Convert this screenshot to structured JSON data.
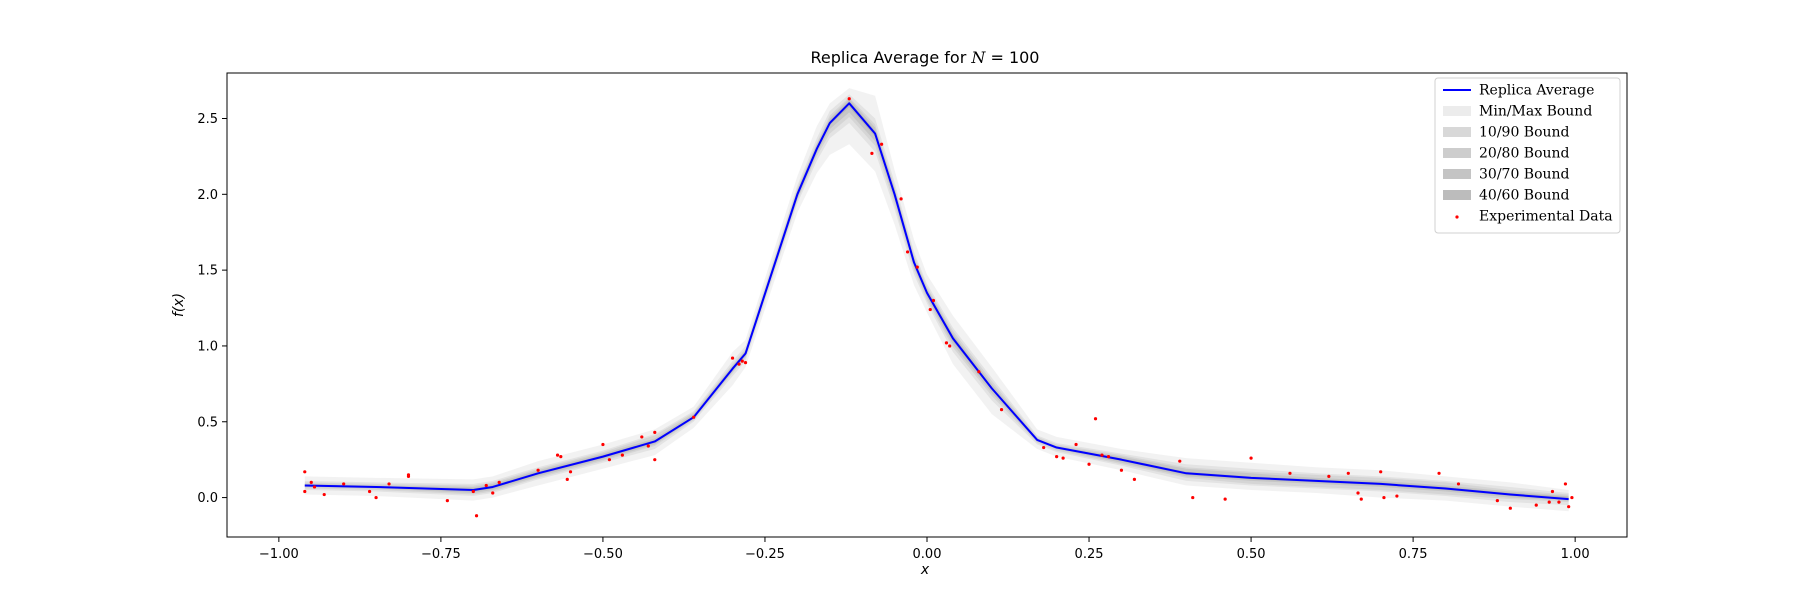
{
  "chart_data": {
    "type": "line",
    "title": "Replica Average for N = 100",
    "title_parts": {
      "prefix": "Replica Average for ",
      "var": "N",
      "suffix": " = 100"
    },
    "xlabel": "x",
    "ylabel": "f(x)",
    "xlim": [
      -1.08,
      1.08
    ],
    "ylim": [
      -0.26,
      2.8
    ],
    "xticks": [
      -1.0,
      -0.75,
      -0.5,
      -0.25,
      0.0,
      0.25,
      0.5,
      0.75,
      1.0
    ],
    "xtick_labels": [
      "−1.00",
      "−0.75",
      "−0.50",
      "−0.25",
      "0.00",
      "0.25",
      "0.50",
      "0.75",
      "1.00"
    ],
    "yticks": [
      0.0,
      0.5,
      1.0,
      1.5,
      2.0,
      2.5
    ],
    "ytick_labels": [
      "0.0",
      "0.5",
      "1.0",
      "1.5",
      "2.0",
      "2.5"
    ],
    "grid": false,
    "legend_position": "top-right",
    "legend": [
      {
        "label": "Replica Average",
        "kind": "line",
        "color": "#0000ff"
      },
      {
        "label": "Min/Max Bound",
        "kind": "band",
        "color": "#ececec"
      },
      {
        "label": "10/90 Bound",
        "kind": "band",
        "color": "#d8d8d8"
      },
      {
        "label": "20/80 Bound",
        "kind": "band",
        "color": "#cdcdcd"
      },
      {
        "label": "30/70 Bound",
        "kind": "band",
        "color": "#c4c4c4"
      },
      {
        "label": "40/60 Bound",
        "kind": "band",
        "color": "#bcbcbc"
      },
      {
        "label": "Experimental Data",
        "kind": "point",
        "color": "#ff0000"
      }
    ],
    "series": [
      {
        "name": "Replica Average",
        "color": "#0000ff",
        "x": [
          -0.96,
          -0.85,
          -0.7,
          -0.67,
          -0.6,
          -0.5,
          -0.42,
          -0.36,
          -0.3,
          -0.28,
          -0.2,
          -0.17,
          -0.15,
          -0.12,
          -0.08,
          -0.05,
          -0.02,
          0.0,
          0.04,
          0.1,
          0.17,
          0.2,
          0.3,
          0.4,
          0.5,
          0.6,
          0.7,
          0.8,
          0.9,
          0.99
        ],
        "y": [
          0.08,
          0.07,
          0.05,
          0.07,
          0.16,
          0.27,
          0.37,
          0.53,
          0.85,
          0.95,
          2.0,
          2.3,
          2.47,
          2.6,
          2.4,
          2.0,
          1.55,
          1.35,
          1.05,
          0.72,
          0.38,
          0.33,
          0.25,
          0.16,
          0.13,
          0.11,
          0.09,
          0.06,
          0.02,
          -0.01
        ]
      }
    ],
    "bands": [
      {
        "name": "Min/Max Bound",
        "color": "#000000",
        "opacity": 0.05,
        "x": [
          -0.96,
          -0.85,
          -0.7,
          -0.67,
          -0.6,
          -0.5,
          -0.42,
          -0.36,
          -0.3,
          -0.28,
          -0.2,
          -0.17,
          -0.15,
          -0.12,
          -0.08,
          -0.05,
          -0.02,
          0.0,
          0.04,
          0.1,
          0.17,
          0.2,
          0.3,
          0.4,
          0.5,
          0.6,
          0.7,
          0.8,
          0.9,
          0.99
        ],
        "lower": [
          0.02,
          0.01,
          -0.02,
          0.0,
          0.08,
          0.19,
          0.28,
          0.46,
          0.74,
          0.86,
          1.88,
          2.14,
          2.26,
          2.33,
          2.15,
          1.8,
          1.4,
          1.22,
          0.88,
          0.55,
          0.32,
          0.27,
          0.18,
          0.08,
          0.05,
          0.03,
          0.0,
          -0.02,
          -0.06,
          -0.09
        ],
        "upper": [
          0.14,
          0.13,
          0.12,
          0.14,
          0.24,
          0.35,
          0.45,
          0.6,
          0.96,
          1.04,
          2.12,
          2.45,
          2.6,
          2.7,
          2.65,
          2.16,
          1.7,
          1.47,
          1.2,
          0.86,
          0.45,
          0.4,
          0.32,
          0.26,
          0.23,
          0.2,
          0.18,
          0.14,
          0.1,
          0.05
        ]
      },
      {
        "name": "10/90 Bound",
        "color": "#000000",
        "opacity": 0.06,
        "x": [
          -0.96,
          -0.85,
          -0.7,
          -0.67,
          -0.6,
          -0.5,
          -0.42,
          -0.36,
          -0.3,
          -0.28,
          -0.2,
          -0.17,
          -0.15,
          -0.12,
          -0.08,
          -0.05,
          -0.02,
          0.0,
          0.04,
          0.1,
          0.17,
          0.2,
          0.3,
          0.4,
          0.5,
          0.6,
          0.7,
          0.8,
          0.9,
          0.99
        ],
        "lower": [
          0.05,
          0.04,
          0.01,
          0.03,
          0.12,
          0.23,
          0.32,
          0.5,
          0.8,
          0.9,
          1.94,
          2.22,
          2.37,
          2.47,
          2.28,
          1.9,
          1.47,
          1.28,
          0.96,
          0.64,
          0.35,
          0.3,
          0.21,
          0.11,
          0.08,
          0.06,
          0.04,
          0.01,
          -0.03,
          -0.05
        ],
        "upper": [
          0.11,
          0.1,
          0.09,
          0.11,
          0.2,
          0.31,
          0.42,
          0.57,
          0.9,
          1.0,
          2.06,
          2.37,
          2.55,
          2.66,
          2.5,
          2.08,
          1.62,
          1.41,
          1.12,
          0.79,
          0.41,
          0.36,
          0.29,
          0.22,
          0.19,
          0.16,
          0.14,
          0.11,
          0.07,
          0.03
        ]
      },
      {
        "name": "20/80 Bound",
        "color": "#000000",
        "opacity": 0.06,
        "x": [
          -0.96,
          -0.85,
          -0.7,
          -0.67,
          -0.6,
          -0.5,
          -0.42,
          -0.36,
          -0.3,
          -0.28,
          -0.2,
          -0.17,
          -0.15,
          -0.12,
          -0.08,
          -0.05,
          -0.02,
          0.0,
          0.04,
          0.1,
          0.17,
          0.2,
          0.3,
          0.4,
          0.5,
          0.6,
          0.7,
          0.8,
          0.9,
          0.99
        ],
        "lower": [
          0.06,
          0.05,
          0.02,
          0.04,
          0.13,
          0.24,
          0.34,
          0.51,
          0.82,
          0.92,
          1.96,
          2.25,
          2.4,
          2.51,
          2.32,
          1.93,
          1.5,
          1.3,
          0.99,
          0.67,
          0.36,
          0.31,
          0.22,
          0.13,
          0.09,
          0.07,
          0.05,
          0.02,
          -0.01,
          -0.03
        ],
        "upper": [
          0.1,
          0.09,
          0.08,
          0.1,
          0.19,
          0.3,
          0.41,
          0.56,
          0.88,
          0.98,
          2.04,
          2.34,
          2.52,
          2.64,
          2.46,
          2.05,
          1.6,
          1.39,
          1.1,
          0.77,
          0.4,
          0.35,
          0.28,
          0.2,
          0.17,
          0.15,
          0.13,
          0.1,
          0.05,
          0.02
        ]
      },
      {
        "name": "30/70 Bound",
        "color": "#000000",
        "opacity": 0.07,
        "x": [
          -0.96,
          -0.85,
          -0.7,
          -0.67,
          -0.6,
          -0.5,
          -0.42,
          -0.36,
          -0.3,
          -0.28,
          -0.2,
          -0.17,
          -0.15,
          -0.12,
          -0.08,
          -0.05,
          -0.02,
          0.0,
          0.04,
          0.1,
          0.17,
          0.2,
          0.3,
          0.4,
          0.5,
          0.6,
          0.7,
          0.8,
          0.9,
          0.99
        ],
        "lower": [
          0.07,
          0.06,
          0.03,
          0.05,
          0.14,
          0.25,
          0.35,
          0.52,
          0.83,
          0.93,
          1.97,
          2.27,
          2.43,
          2.54,
          2.35,
          1.96,
          1.52,
          1.32,
          1.01,
          0.69,
          0.37,
          0.32,
          0.23,
          0.14,
          0.11,
          0.09,
          0.07,
          0.04,
          0.0,
          -0.02
        ],
        "upper": [
          0.09,
          0.08,
          0.07,
          0.09,
          0.18,
          0.29,
          0.39,
          0.55,
          0.87,
          0.97,
          2.03,
          2.33,
          2.5,
          2.63,
          2.44,
          2.04,
          1.58,
          1.38,
          1.08,
          0.75,
          0.39,
          0.34,
          0.27,
          0.19,
          0.16,
          0.13,
          0.11,
          0.08,
          0.04,
          0.01
        ]
      },
      {
        "name": "40/60 Bound",
        "color": "#000000",
        "opacity": 0.08,
        "x": [
          -0.96,
          -0.85,
          -0.7,
          -0.67,
          -0.6,
          -0.5,
          -0.42,
          -0.36,
          -0.3,
          -0.28,
          -0.2,
          -0.17,
          -0.15,
          -0.12,
          -0.08,
          -0.05,
          -0.02,
          0.0,
          0.04,
          0.1,
          0.17,
          0.2,
          0.3,
          0.4,
          0.5,
          0.6,
          0.7,
          0.8,
          0.9,
          0.99
        ],
        "lower": [
          0.075,
          0.065,
          0.04,
          0.06,
          0.15,
          0.26,
          0.36,
          0.525,
          0.84,
          0.94,
          1.985,
          2.285,
          2.455,
          2.575,
          2.38,
          1.98,
          1.535,
          1.335,
          1.03,
          0.71,
          0.375,
          0.325,
          0.24,
          0.15,
          0.12,
          0.1,
          0.08,
          0.05,
          0.01,
          -0.015
        ],
        "upper": [
          0.085,
          0.075,
          0.06,
          0.08,
          0.17,
          0.28,
          0.38,
          0.535,
          0.86,
          0.96,
          2.015,
          2.315,
          2.485,
          2.615,
          2.42,
          2.02,
          1.565,
          1.365,
          1.07,
          0.73,
          0.385,
          0.335,
          0.26,
          0.17,
          0.14,
          0.12,
          0.1,
          0.07,
          0.03,
          0.005
        ]
      }
    ],
    "scatter": {
      "name": "Experimental Data",
      "color": "#ff0000",
      "x": [
        -0.96,
        -0.96,
        -0.95,
        -0.945,
        -0.93,
        -0.9,
        -0.86,
        -0.85,
        -0.83,
        -0.8,
        -0.8,
        -0.74,
        -0.7,
        -0.695,
        -0.68,
        -0.67,
        -0.66,
        -0.6,
        -0.57,
        -0.565,
        -0.555,
        -0.55,
        -0.5,
        -0.49,
        -0.47,
        -0.44,
        -0.43,
        -0.42,
        -0.42,
        -0.36,
        -0.3,
        -0.29,
        -0.285,
        -0.28,
        -0.12,
        -0.085,
        -0.07,
        -0.04,
        -0.03,
        -0.015,
        0.005,
        0.01,
        0.03,
        0.035,
        0.08,
        0.115,
        0.18,
        0.2,
        0.21,
        0.23,
        0.25,
        0.26,
        0.27,
        0.28,
        0.3,
        0.32,
        0.39,
        0.41,
        0.46,
        0.5,
        0.56,
        0.62,
        0.65,
        0.665,
        0.67,
        0.7,
        0.705,
        0.725,
        0.79,
        0.82,
        0.88,
        0.9,
        0.94,
        0.96,
        0.965,
        0.975,
        0.985,
        0.99,
        0.995
      ],
      "y": [
        0.17,
        0.04,
        0.1,
        0.07,
        0.02,
        0.09,
        0.04,
        0.0,
        0.09,
        0.15,
        0.14,
        -0.02,
        0.04,
        -0.12,
        0.08,
        0.03,
        0.1,
        0.18,
        0.28,
        0.27,
        0.12,
        0.17,
        0.35,
        0.25,
        0.28,
        0.4,
        0.34,
        0.25,
        0.43,
        0.53,
        0.92,
        0.88,
        0.9,
        0.89,
        2.63,
        2.27,
        2.33,
        1.97,
        1.62,
        1.52,
        1.24,
        1.3,
        1.02,
        1.0,
        0.83,
        0.58,
        0.33,
        0.27,
        0.26,
        0.35,
        0.22,
        0.52,
        0.28,
        0.27,
        0.18,
        0.12,
        0.24,
        0.0,
        -0.01,
        0.26,
        0.16,
        0.14,
        0.16,
        0.03,
        -0.01,
        0.17,
        0.0,
        0.01,
        0.16,
        0.09,
        -0.02,
        -0.07,
        -0.05,
        -0.03,
        0.04,
        -0.03,
        0.09,
        -0.06,
        0.0
      ]
    }
  }
}
